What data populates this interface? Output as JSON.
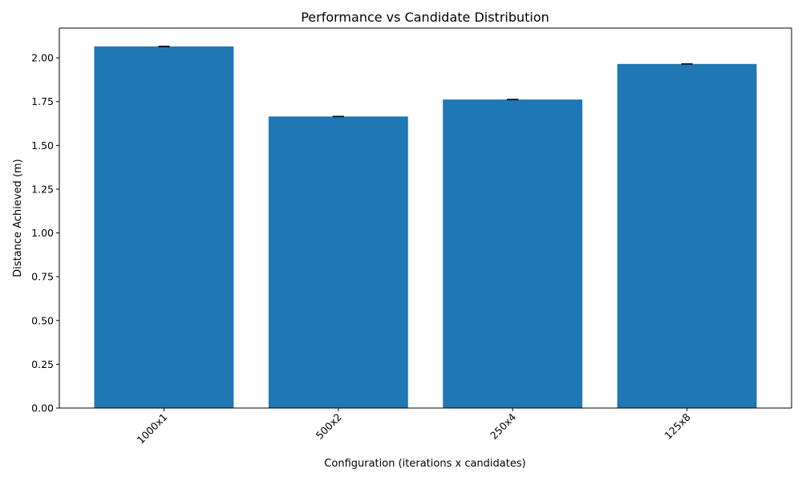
{
  "chart_data": {
    "type": "bar",
    "title": "Performance vs Candidate Distribution",
    "xlabel": "Configuration (iterations x candidates)",
    "ylabel": "Distance Achieved (m)",
    "categories": [
      "1000x1",
      "500x2",
      "250x4",
      "125x8"
    ],
    "values": [
      2.065,
      1.665,
      1.762,
      1.965
    ],
    "errors": [
      0.0,
      0.0,
      0.0,
      0.0
    ],
    "ylim": [
      0,
      2.17
    ],
    "yticks": [
      0.0,
      0.25,
      0.5,
      0.75,
      1.0,
      1.25,
      1.5,
      1.75,
      2.0
    ],
    "ytick_labels": [
      "0.00",
      "0.25",
      "0.50",
      "0.75",
      "1.00",
      "1.25",
      "1.50",
      "1.75",
      "2.00"
    ],
    "bar_color": "#1f77b4",
    "error_color": "#000000",
    "grid": false,
    "xtick_rotation_deg": 45
  }
}
